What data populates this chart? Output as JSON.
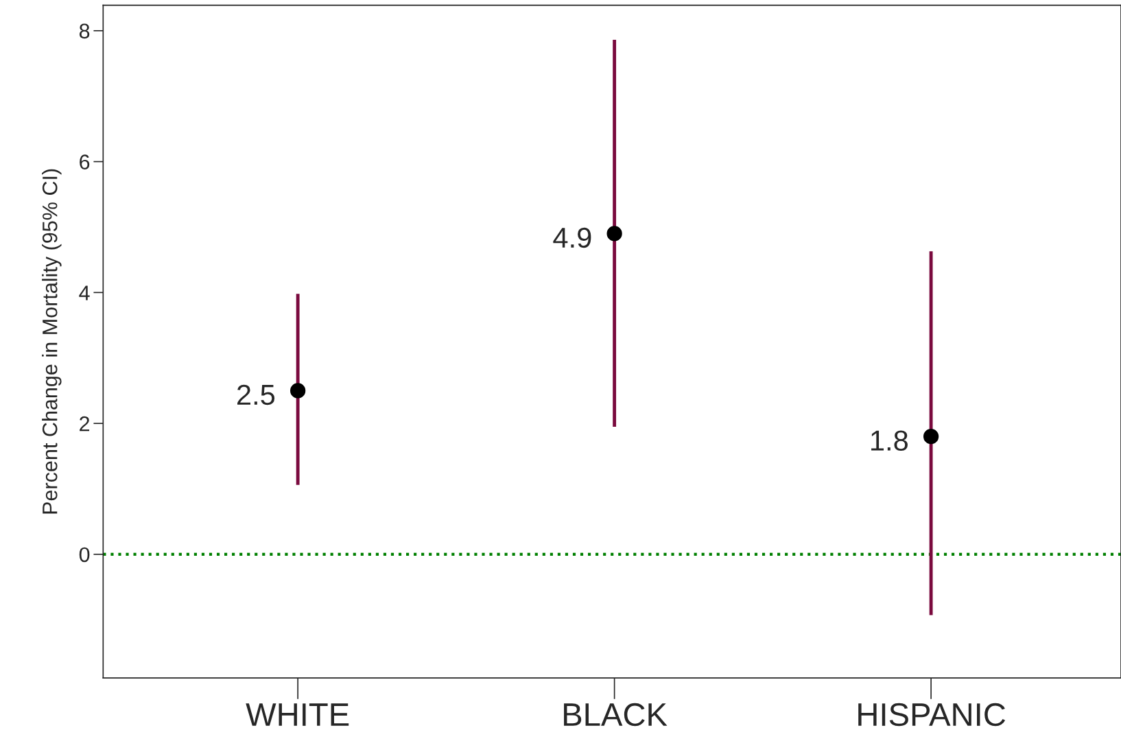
{
  "chart_data": {
    "type": "scatter",
    "ylabel": "Percent Change in Mortality (95% CI)",
    "categories": [
      "WHITE",
      "BLACK",
      "HISPANIC"
    ],
    "series": [
      {
        "color": "#000000",
        "values": [
          2.5,
          4.9,
          1.8
        ],
        "errors": [
          [
            1.06,
            3.98
          ],
          [
            1.95,
            7.86
          ],
          [
            -0.93,
            4.63
          ]
        ]
      }
    ],
    "data_labels": true,
    "marker": "circle",
    "ylim": [
      -1.89,
      8.39
    ],
    "yticks": [
      0,
      2,
      4,
      6,
      8
    ],
    "ref_lines": [
      {
        "axis": "y",
        "value": 0,
        "color": "#008000",
        "line_style": "dotted"
      }
    ],
    "grid": false
  }
}
